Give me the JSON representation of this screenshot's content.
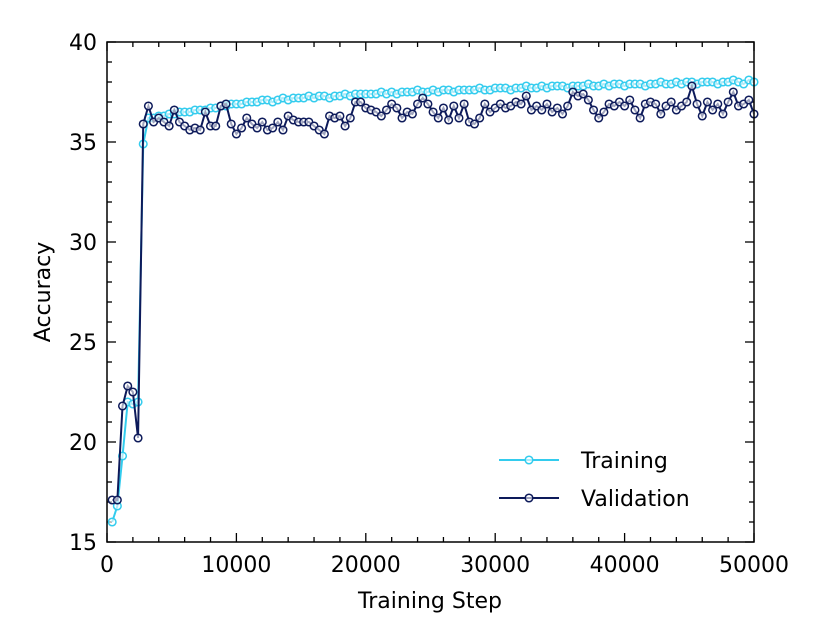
{
  "chart_data": {
    "type": "line",
    "xlabel": "Training Step",
    "ylabel": "Accuracy",
    "x": [
      400,
      800,
      1200,
      1600,
      2000,
      2400,
      2800,
      3200,
      3600,
      4000,
      4400,
      4800,
      5200,
      5600,
      6000,
      6400,
      6800,
      7200,
      7600,
      8000,
      8400,
      8800,
      9200,
      9600,
      10000,
      10400,
      10800,
      11200,
      11600,
      12000,
      12400,
      12800,
      13200,
      13600,
      14000,
      14400,
      14800,
      15200,
      15600,
      16000,
      16400,
      16800,
      17200,
      17600,
      18000,
      18400,
      18800,
      19200,
      19600,
      20000,
      20400,
      20800,
      21200,
      21600,
      22000,
      22400,
      22800,
      23200,
      23600,
      24000,
      24400,
      24800,
      25200,
      25600,
      26000,
      26400,
      26800,
      27200,
      27600,
      28000,
      28400,
      28800,
      29200,
      29600,
      30000,
      30400,
      30800,
      31200,
      31600,
      32000,
      32400,
      32800,
      33200,
      33600,
      34000,
      34400,
      34800,
      35200,
      35600,
      36000,
      36400,
      36800,
      37200,
      37600,
      38000,
      38400,
      38800,
      39200,
      39600,
      40000,
      40400,
      40800,
      41200,
      41600,
      42000,
      42400,
      42800,
      43200,
      43600,
      44000,
      44400,
      44800,
      45200,
      45600,
      46000,
      46400,
      46800,
      47200,
      47600,
      48000,
      48400,
      48800,
      49200,
      49600,
      50000
    ],
    "series": [
      {
        "name": "Training",
        "color": "#33ccee",
        "values": [
          16.0,
          16.8,
          19.3,
          22.0,
          21.9,
          22.0,
          34.9,
          36.2,
          36.2,
          36.3,
          36.3,
          36.4,
          36.4,
          36.5,
          36.5,
          36.5,
          36.6,
          36.6,
          36.6,
          36.7,
          36.7,
          36.8,
          36.8,
          36.9,
          36.9,
          36.9,
          37.0,
          37.0,
          37.0,
          37.1,
          37.1,
          37.0,
          37.1,
          37.2,
          37.1,
          37.2,
          37.2,
          37.2,
          37.3,
          37.2,
          37.3,
          37.3,
          37.2,
          37.3,
          37.3,
          37.4,
          37.3,
          37.4,
          37.4,
          37.4,
          37.4,
          37.4,
          37.5,
          37.4,
          37.5,
          37.4,
          37.5,
          37.5,
          37.5,
          37.6,
          37.5,
          37.5,
          37.6,
          37.5,
          37.6,
          37.6,
          37.5,
          37.6,
          37.6,
          37.6,
          37.6,
          37.7,
          37.6,
          37.6,
          37.7,
          37.7,
          37.7,
          37.6,
          37.7,
          37.7,
          37.8,
          37.7,
          37.7,
          37.8,
          37.7,
          37.8,
          37.8,
          37.8,
          37.7,
          37.8,
          37.8,
          37.8,
          37.9,
          37.8,
          37.8,
          37.9,
          37.8,
          37.9,
          37.9,
          37.8,
          37.9,
          37.9,
          37.9,
          37.8,
          37.9,
          37.9,
          38.0,
          37.9,
          37.9,
          38.0,
          37.9,
          38.0,
          38.0,
          37.9,
          38.0,
          38.0,
          38.0,
          37.9,
          38.0,
          38.0,
          38.1,
          38.0,
          37.9,
          38.1,
          38.0
        ]
      },
      {
        "name": "Validation",
        "color": "#0d1a5a",
        "values": [
          17.1,
          17.1,
          21.8,
          22.8,
          22.5,
          20.2,
          35.9,
          36.8,
          36.0,
          36.2,
          36.0,
          35.8,
          36.6,
          36.0,
          35.8,
          35.6,
          35.7,
          35.6,
          36.5,
          35.8,
          35.8,
          36.8,
          36.9,
          35.9,
          35.4,
          35.7,
          36.2,
          35.9,
          35.7,
          36.0,
          35.6,
          35.7,
          36.0,
          35.6,
          36.3,
          36.1,
          36.0,
          36.0,
          36.0,
          35.8,
          35.6,
          35.4,
          36.3,
          36.2,
          36.3,
          35.8,
          36.2,
          37.0,
          37.0,
          36.7,
          36.6,
          36.5,
          36.3,
          36.6,
          36.9,
          36.7,
          36.2,
          36.5,
          36.4,
          36.9,
          37.2,
          36.9,
          36.5,
          36.2,
          36.7,
          36.1,
          36.8,
          36.2,
          36.9,
          36.0,
          35.9,
          36.2,
          36.9,
          36.5,
          36.7,
          36.9,
          36.7,
          36.8,
          37.0,
          36.9,
          37.3,
          36.6,
          36.8,
          36.6,
          36.9,
          36.5,
          36.7,
          36.4,
          36.8,
          37.5,
          37.3,
          37.4,
          37.1,
          36.6,
          36.2,
          36.5,
          36.9,
          36.8,
          37.0,
          36.8,
          37.1,
          36.6,
          36.2,
          36.9,
          37.0,
          36.9,
          36.4,
          36.8,
          37.0,
          36.6,
          36.8,
          37.0,
          37.8,
          36.9,
          36.3,
          37.0,
          36.6,
          36.9,
          36.4,
          37.0,
          37.5,
          36.8,
          36.9,
          37.1,
          36.4
        ]
      }
    ],
    "xlim": [
      0,
      50000
    ],
    "xticks": [
      0,
      10000,
      20000,
      30000,
      40000,
      50000
    ],
    "xminorticks": [
      2000,
      4000,
      6000,
      8000,
      12000,
      14000,
      16000,
      18000,
      22000,
      24000,
      26000,
      28000,
      32000,
      34000,
      36000,
      38000,
      42000,
      44000,
      46000,
      48000
    ],
    "ylim": [
      15,
      40
    ],
    "yticks": [
      15,
      20,
      25,
      30,
      35,
      40
    ],
    "yminorticks": [
      16,
      17,
      18,
      19,
      21,
      22,
      23,
      24,
      26,
      27,
      28,
      29,
      31,
      32,
      33,
      34,
      36,
      37,
      38,
      39
    ],
    "legend": "lower right"
  }
}
